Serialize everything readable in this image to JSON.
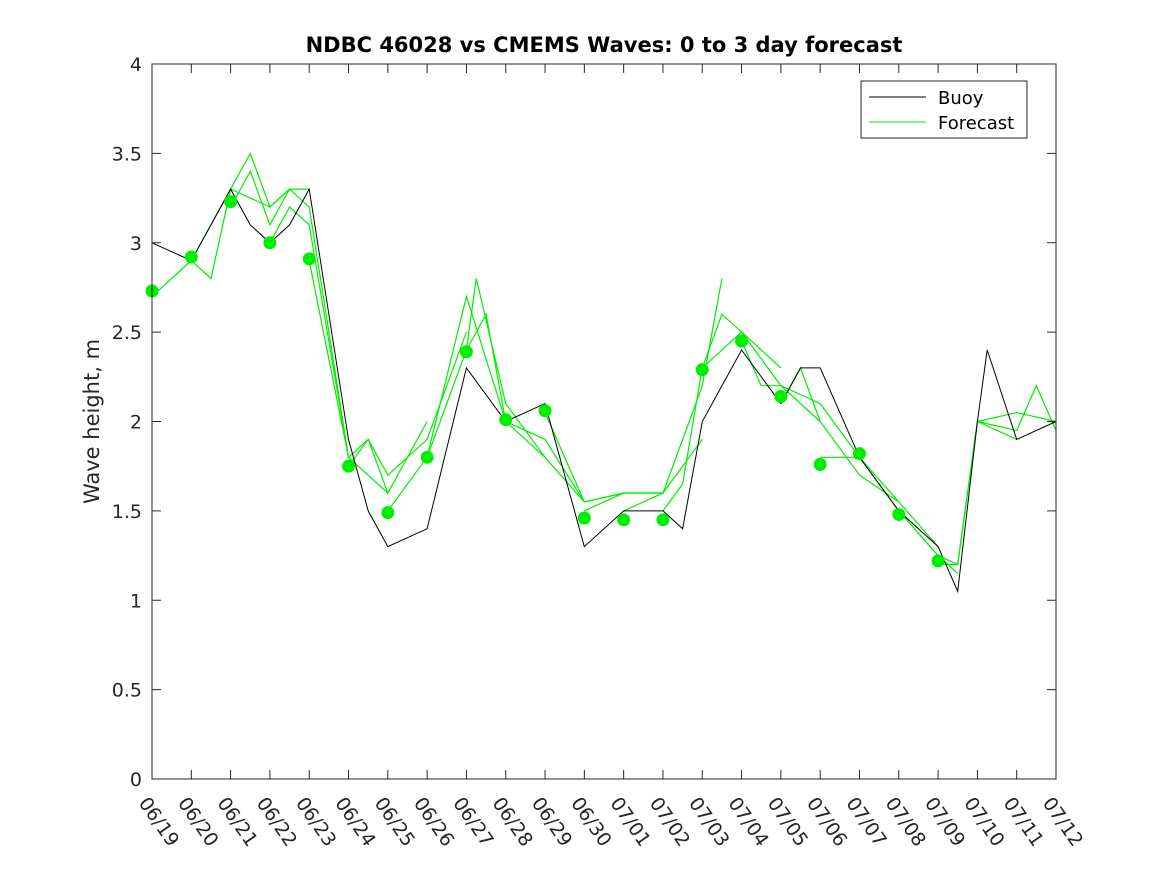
{
  "chart_data": {
    "type": "line",
    "title": "NDBC 46028 vs CMEMS Waves: 0 to 3 day forecast",
    "xlabel": "",
    "ylabel": "Wave height, m",
    "xlim": [
      "06/19",
      "07/12"
    ],
    "ylim": [
      0,
      4
    ],
    "grid": false,
    "legend_position": "top-right",
    "y_ticks": [
      "0",
      "0.5",
      "1",
      "1.5",
      "2",
      "2.5",
      "3",
      "3.5",
      "4"
    ],
    "x_ticks": [
      "06/19",
      "06/20",
      "06/21",
      "06/22",
      "06/23",
      "06/24",
      "06/25",
      "06/26",
      "06/27",
      "06/28",
      "06/29",
      "06/30",
      "07/01",
      "07/02",
      "07/03",
      "07/04",
      "07/05",
      "07/06",
      "07/07",
      "07/08",
      "07/09",
      "07/10",
      "07/11",
      "07/12"
    ],
    "colors": {
      "buoy": "#000000",
      "forecast": "#00ee00",
      "marker": "#00ee00"
    },
    "buoy": {
      "name": "Buoy",
      "x": [
        "06/19",
        "06/20",
        "06/21",
        "06/21 12:00",
        "06/22",
        "06/22 12:00",
        "06/23",
        "06/24",
        "06/24 12:00",
        "06/25",
        "06/26",
        "06/27",
        "06/28",
        "06/29",
        "06/30",
        "07/01",
        "07/02",
        "07/02 12:00",
        "07/03",
        "07/04",
        "07/05",
        "07/05 12:00",
        "07/06",
        "07/07",
        "07/08",
        "07/09",
        "07/09 12:00",
        "07/10",
        "07/10 06:00",
        "07/11",
        "07/12"
      ],
      "y": [
        3.0,
        2.9,
        3.3,
        3.1,
        3.0,
        3.1,
        3.3,
        1.9,
        1.5,
        1.3,
        1.4,
        2.3,
        2.0,
        2.1,
        1.3,
        1.5,
        1.5,
        1.4,
        2.0,
        2.4,
        2.1,
        2.3,
        2.3,
        1.8,
        1.5,
        1.3,
        1.05,
        2.0,
        2.4,
        1.9,
        2.0
      ]
    },
    "forecast": {
      "name": "Forecast",
      "runs": [
        {
          "x": [
            "06/19",
            "06/20",
            "06/21",
            "06/22",
            "06/22 12:00"
          ],
          "y": [
            2.7,
            2.9,
            3.3,
            3.2,
            3.3
          ]
        },
        {
          "x": [
            "06/20",
            "06/20 12:00",
            "06/21",
            "06/21 12:00",
            "06/22",
            "06/22 12:00",
            "06/23"
          ],
          "y": [
            2.9,
            2.8,
            3.3,
            3.5,
            3.2,
            3.3,
            3.3
          ]
        },
        {
          "x": [
            "06/21",
            "06/21 12:00",
            "06/22",
            "06/22 12:00",
            "06/23",
            "06/23 12:00",
            "06/24"
          ],
          "y": [
            3.2,
            3.4,
            3.1,
            3.3,
            3.2,
            2.5,
            1.8
          ]
        },
        {
          "x": [
            "06/22",
            "06/22 12:00",
            "06/23",
            "06/24",
            "06/25"
          ],
          "y": [
            3.0,
            3.2,
            3.1,
            1.8,
            1.6
          ]
        },
        {
          "x": [
            "06/23",
            "06/24",
            "06/24 12:00",
            "06/25",
            "06/26"
          ],
          "y": [
            2.9,
            1.8,
            1.9,
            1.6,
            2.0
          ]
        },
        {
          "x": [
            "06/24",
            "06/24 12:00",
            "06/25",
            "06/26",
            "06/27"
          ],
          "y": [
            1.75,
            1.9,
            1.7,
            1.9,
            2.5
          ]
        },
        {
          "x": [
            "06/25",
            "06/26",
            "06/27",
            "06/28"
          ],
          "y": [
            1.5,
            1.8,
            2.7,
            2.0
          ]
        },
        {
          "x": [
            "06/26",
            "06/27",
            "06/27 06:00",
            "06/28",
            "06/29"
          ],
          "y": [
            1.8,
            2.4,
            2.8,
            2.1,
            1.8
          ]
        },
        {
          "x": [
            "06/27",
            "06/27 12:00",
            "06/28",
            "06/29",
            "06/30"
          ],
          "y": [
            2.4,
            2.6,
            2.0,
            1.8,
            1.55
          ]
        },
        {
          "x": [
            "06/28",
            "06/29",
            "06/30",
            "07/01"
          ],
          "y": [
            2.0,
            1.9,
            1.55,
            1.6
          ]
        },
        {
          "x": [
            "06/29",
            "06/30",
            "07/01",
            "07/02"
          ],
          "y": [
            2.05,
            1.55,
            1.6,
            1.6
          ]
        },
        {
          "x": [
            "06/30",
            "07/01",
            "07/02",
            "07/03"
          ],
          "y": [
            1.5,
            1.6,
            1.6,
            1.9
          ]
        },
        {
          "x": [
            "07/01",
            "07/02",
            "07/03",
            "07/03 12:00"
          ],
          "y": [
            1.5,
            1.6,
            2.2,
            2.8
          ]
        },
        {
          "x": [
            "07/02",
            "07/02 12:00",
            "07/03",
            "07/04",
            "07/05"
          ],
          "y": [
            1.5,
            1.65,
            2.3,
            2.5,
            2.3
          ]
        },
        {
          "x": [
            "07/03",
            "07/03 12:00",
            "07/04",
            "07/05",
            "07/06"
          ],
          "y": [
            2.3,
            2.6,
            2.5,
            2.2,
            2.0
          ]
        },
        {
          "x": [
            "07/04",
            "07/04 12:00",
            "07/05",
            "07/06",
            "07/07"
          ],
          "y": [
            2.45,
            2.2,
            2.2,
            2.1,
            1.8
          ]
        },
        {
          "x": [
            "07/05",
            "07/05 12:00",
            "07/06",
            "07/07",
            "07/08"
          ],
          "y": [
            2.1,
            2.3,
            2.0,
            1.7,
            1.55
          ]
        },
        {
          "x": [
            "07/06",
            "07/07",
            "07/08",
            "07/09"
          ],
          "y": [
            1.8,
            1.8,
            1.55,
            1.3
          ]
        },
        {
          "x": [
            "07/07",
            "07/08",
            "07/09",
            "07/09 12:00"
          ],
          "y": [
            1.8,
            1.5,
            1.25,
            1.15
          ]
        },
        {
          "x": [
            "07/08",
            "07/09",
            "07/09 12:00",
            "07/10",
            "07/11"
          ],
          "y": [
            1.5,
            1.25,
            1.2,
            2.0,
            1.9
          ]
        },
        {
          "x": [
            "07/09",
            "07/09 12:00",
            "07/10",
            "07/11",
            "07/12"
          ],
          "y": [
            1.2,
            1.2,
            2.0,
            2.05,
            2.0
          ]
        },
        {
          "x": [
            "07/10",
            "07/11",
            "07/11 12:00",
            "07/12"
          ],
          "y": [
            2.0,
            1.95,
            2.2,
            1.95
          ]
        }
      ]
    },
    "markers": {
      "x": [
        "06/19",
        "06/20",
        "06/21",
        "06/22",
        "06/23",
        "06/24",
        "06/25",
        "06/26",
        "06/27",
        "06/28",
        "06/29",
        "06/30",
        "07/01",
        "07/02",
        "07/03",
        "07/04",
        "07/05",
        "07/06",
        "07/07",
        "07/08",
        "07/09"
      ],
      "y": [
        2.73,
        2.92,
        3.23,
        3.0,
        2.91,
        1.75,
        1.49,
        1.8,
        2.39,
        2.01,
        2.06,
        1.46,
        1.45,
        1.45,
        2.29,
        2.45,
        2.14,
        1.76,
        1.82,
        1.48,
        1.22
      ]
    },
    "legend": [
      {
        "name": "Buoy",
        "color": "#000000"
      },
      {
        "name": "Forecast",
        "color": "#00ee00"
      }
    ]
  }
}
